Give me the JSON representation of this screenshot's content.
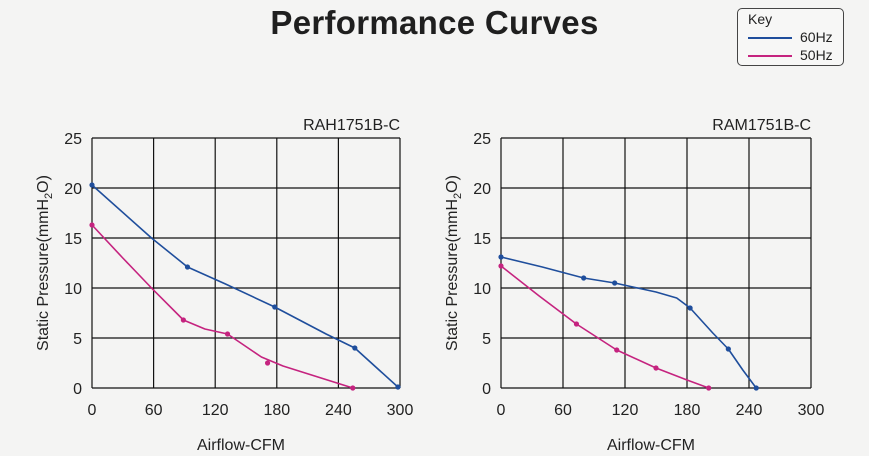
{
  "title": "Performance Curves",
  "legend": {
    "title": "Key",
    "items": [
      {
        "label": "60Hz",
        "color": "#1f4e9c"
      },
      {
        "label": "50Hz",
        "color": "#c5237f"
      }
    ]
  },
  "chart_data": [
    {
      "type": "line",
      "title": "RAH1751B-C",
      "xlabel": "Airflow-CFM",
      "ylabel_main": "Static Pressure(mmH",
      "ylabel_sub": "2",
      "ylabel_end": "O)",
      "xlim": [
        0,
        300
      ],
      "ylim": [
        0,
        25
      ],
      "xticks": [
        "0",
        "60",
        "120",
        "180",
        "240",
        "300"
      ],
      "yticks": [
        "0",
        "5",
        "10",
        "15",
        "20",
        "25"
      ],
      "grid": true,
      "series": [
        {
          "name": "60Hz",
          "color": "#1f4e9c",
          "points": [
            [
              0,
              20.3
            ],
            [
              58,
              15
            ],
            [
              93,
              12.1
            ],
            [
              130,
              10.4
            ],
            [
              178,
              8.1
            ],
            [
              228,
              5.4
            ],
            [
              256,
              4.0
            ],
            [
              298,
              0.1
            ]
          ],
          "markers": [
            [
              0,
              20.3
            ],
            [
              93,
              12.1
            ],
            [
              178,
              8.1
            ],
            [
              256,
              4.0
            ],
            [
              298,
              0.1
            ]
          ]
        },
        {
          "name": "50Hz",
          "color": "#c5237f",
          "points": [
            [
              0,
              16.3
            ],
            [
              30,
              13
            ],
            [
              58,
              10
            ],
            [
              89,
              6.8
            ],
            [
              110,
              5.9
            ],
            [
              132,
              5.4
            ],
            [
              165,
              3.1
            ],
            [
              186,
              2.2
            ],
            [
              254,
              0
            ]
          ],
          "markers": [
            [
              0,
              16.3
            ],
            [
              89,
              6.8
            ],
            [
              132,
              5.4
            ],
            [
              171,
              2.5
            ],
            [
              254,
              0
            ]
          ]
        }
      ]
    },
    {
      "type": "line",
      "title": "RAM1751B-C",
      "xlabel": "Airflow-CFM",
      "ylabel_main": "Static Pressure(mmH",
      "ylabel_sub": "2",
      "ylabel_end": "O)",
      "xlim": [
        0,
        300
      ],
      "ylim": [
        0,
        25
      ],
      "xticks": [
        "0",
        "60",
        "120",
        "180",
        "240",
        "300"
      ],
      "yticks": [
        "0",
        "5",
        "10",
        "15",
        "20",
        "25"
      ],
      "grid": true,
      "series": [
        {
          "name": "60Hz",
          "color": "#1f4e9c",
          "points": [
            [
              0,
              13.1
            ],
            [
              40,
              12.1
            ],
            [
              80,
              11.0
            ],
            [
              110,
              10.5
            ],
            [
              150,
              9.6
            ],
            [
              170,
              9.0
            ],
            [
              183,
              8.0
            ],
            [
              205,
              5.5
            ],
            [
              220,
              3.9
            ],
            [
              234,
              1.8
            ],
            [
              247,
              0
            ]
          ],
          "markers": [
            [
              0,
              13.1
            ],
            [
              80,
              11.0
            ],
            [
              110,
              10.5
            ],
            [
              183,
              8.0
            ],
            [
              220,
              3.9
            ],
            [
              247,
              0
            ]
          ]
        },
        {
          "name": "50Hz",
          "color": "#c5237f",
          "points": [
            [
              0,
              12.2
            ],
            [
              37,
              9.2
            ],
            [
              73,
              6.4
            ],
            [
              112,
              3.8
            ],
            [
              150,
              2.0
            ],
            [
              180,
              0.8
            ],
            [
              201,
              0
            ]
          ],
          "markers": [
            [
              0,
              12.2
            ],
            [
              73,
              6.4
            ],
            [
              112,
              3.8
            ],
            [
              150,
              2.0
            ],
            [
              201,
              0
            ]
          ]
        }
      ]
    }
  ]
}
